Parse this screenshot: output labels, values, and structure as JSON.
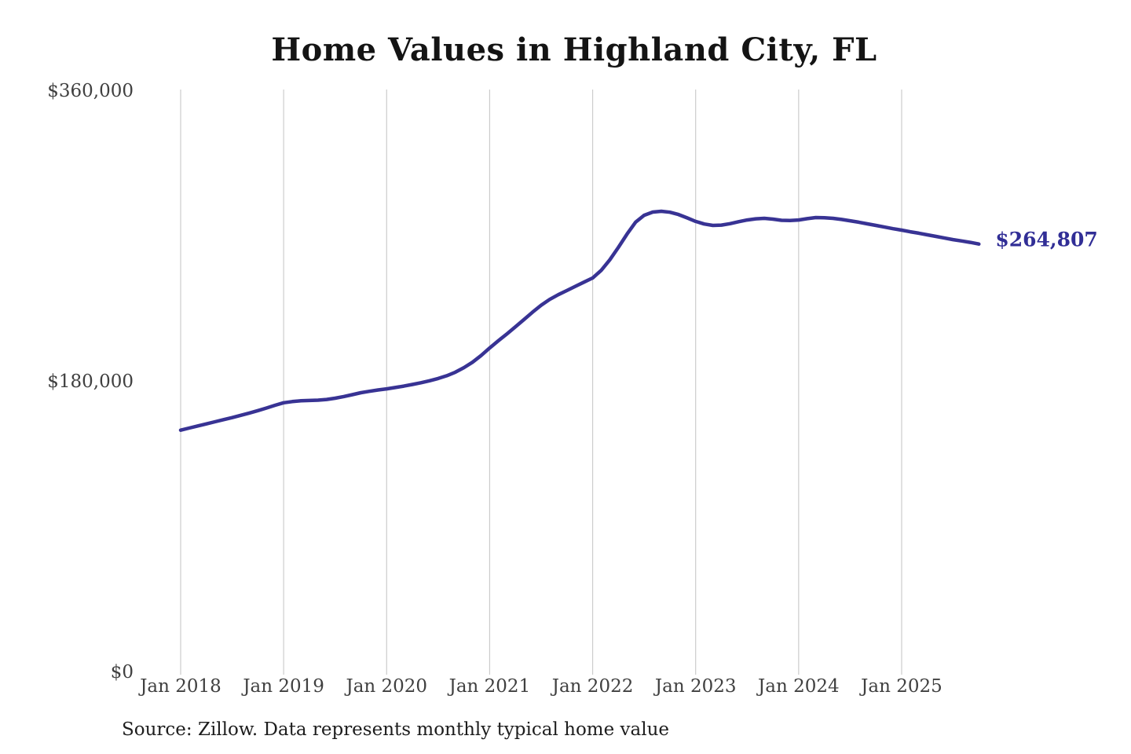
{
  "title": "Home Values in Highland City, FL",
  "source_note": "Source: Zillow. Data represents monthly typical home value",
  "colors": {
    "background": "#ffffff",
    "line": "#383394",
    "end_label": "#312e96",
    "gridline": "#cccccc",
    "axis_text": "#404040",
    "title_text": "#141414",
    "source_text": "#1d1d1d"
  },
  "chart_data": {
    "type": "line",
    "title": "Home Values in Highland City, FL",
    "xlabel": "",
    "ylabel": "",
    "ylim": [
      0,
      360000
    ],
    "grid": "vertical-only",
    "legend": "none",
    "x_tick_labels": [
      "Jan 2018",
      "Jan 2019",
      "Jan 2020",
      "Jan 2021",
      "Jan 2022",
      "Jan 2023",
      "Jan 2024",
      "Jan 2025"
    ],
    "y_ticks": [
      {
        "value": 0,
        "label": "$0"
      },
      {
        "value": 180000,
        "label": "$180,000"
      },
      {
        "value": 360000,
        "label": "$360,000"
      }
    ],
    "series": [
      {
        "name": "Monthly typical home value",
        "unit": "USD",
        "start_month": "2018-01",
        "frequency": "monthly",
        "values": [
          149500,
          150800,
          152100,
          153400,
          154700,
          156000,
          157300,
          158700,
          160100,
          161600,
          163200,
          164900,
          166500,
          167200,
          167700,
          167900,
          168100,
          168500,
          169300,
          170300,
          171500,
          172700,
          173600,
          174400,
          175100,
          175900,
          176800,
          177800,
          178900,
          180100,
          181500,
          183200,
          185400,
          188200,
          191600,
          195700,
          200400,
          204800,
          209100,
          213500,
          218000,
          222600,
          226900,
          230500,
          233400,
          236000,
          238600,
          241200,
          243800,
          248500,
          255000,
          262700,
          270900,
          278300,
          282600,
          284600,
          285100,
          284500,
          283100,
          281000,
          278800,
          277200,
          276300,
          276500,
          277400,
          278600,
          279700,
          280400,
          280700,
          280200,
          279500,
          279400,
          279700,
          280500,
          281200,
          281100,
          280700,
          280000,
          279200,
          278300,
          277300,
          276300,
          275300,
          274300,
          273400,
          272400,
          271500,
          270500,
          269500,
          268500,
          267500,
          266700,
          265800,
          264807
        ]
      }
    ],
    "latest_value": 264807,
    "annotation": {
      "text": "$264,807",
      "position": "line-end"
    }
  }
}
